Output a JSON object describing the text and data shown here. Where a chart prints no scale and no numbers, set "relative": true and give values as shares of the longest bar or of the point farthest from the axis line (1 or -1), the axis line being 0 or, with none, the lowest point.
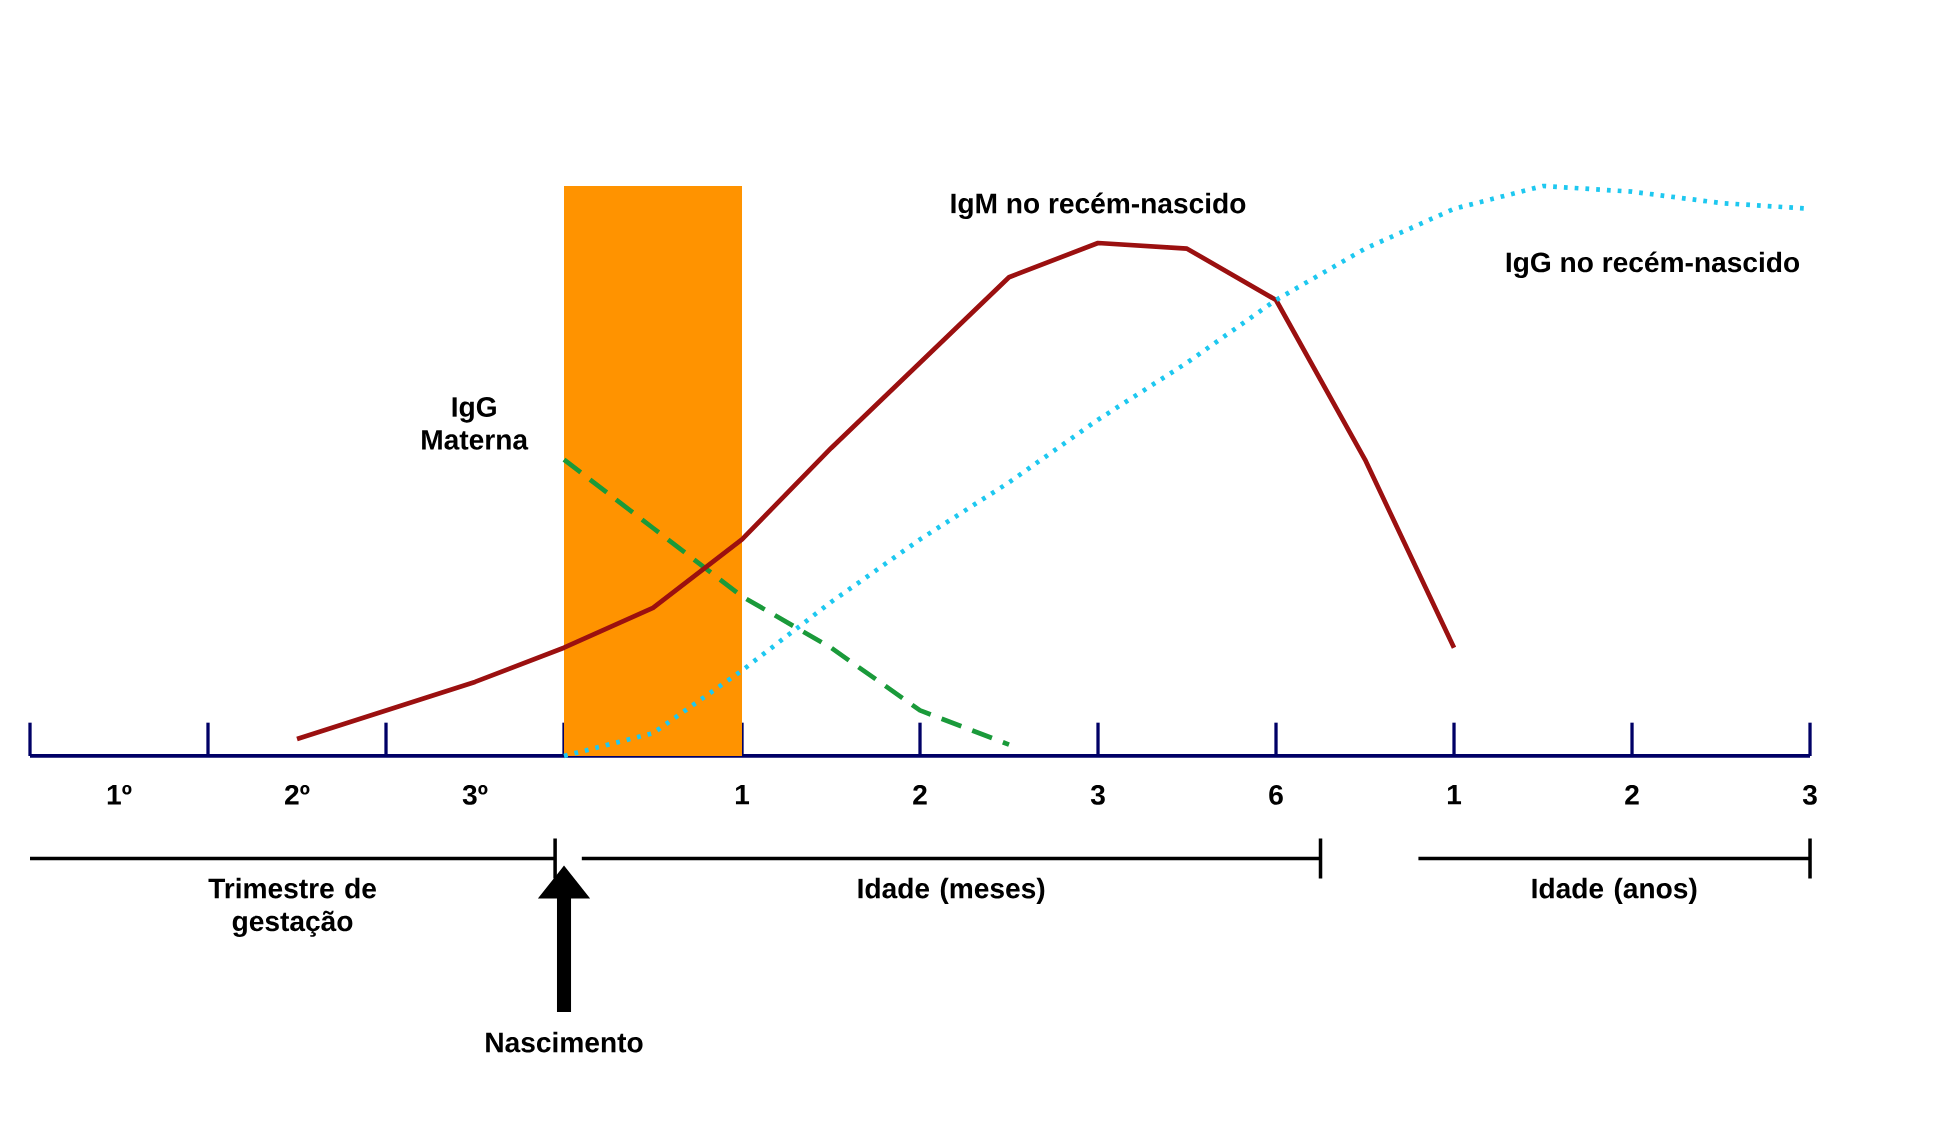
{
  "chart_data": {
    "type": "line",
    "relative": true,
    "legend": false,
    "grid": false,
    "marker": "none",
    "categories": [
      null,
      "1º",
      null,
      "2º",
      null,
      "3º",
      null,
      null,
      "1",
      null,
      "2",
      null,
      "3",
      null,
      "6",
      null,
      "1",
      null,
      "2",
      null,
      "3"
    ],
    "series": [
      {
        "name": "IgG Materna",
        "color": "#1a9a3a",
        "line_style": "dashed",
        "values": [
          null,
          null,
          null,
          null,
          null,
          null,
          0.52,
          0.4,
          0.28,
          0.19,
          0.08,
          0.02,
          null,
          null,
          null,
          null,
          null,
          null,
          null,
          null,
          null
        ]
      },
      {
        "name": "IgM no recém-nascido",
        "color": "#9b1010",
        "line_style": "solid",
        "values": [
          null,
          null,
          null,
          0.03,
          0.08,
          0.13,
          0.19,
          0.26,
          0.38,
          0.54,
          0.69,
          0.84,
          0.9,
          0.89,
          0.8,
          0.52,
          0.19,
          null,
          null,
          null,
          null
        ]
      },
      {
        "name": "IgG no recém-nascido",
        "color": "#1ec8f0",
        "line_style": "dotted",
        "values": [
          null,
          null,
          null,
          null,
          null,
          null,
          0.0,
          0.04,
          0.15,
          0.27,
          0.38,
          0.48,
          0.59,
          0.69,
          0.8,
          0.89,
          0.96,
          1.0,
          0.99,
          0.97,
          0.96
        ]
      }
    ],
    "annotations": [
      "Trimestre de gestação",
      "Idade (meses)",
      "Idade (anos)",
      "Nascimento"
    ]
  }
}
